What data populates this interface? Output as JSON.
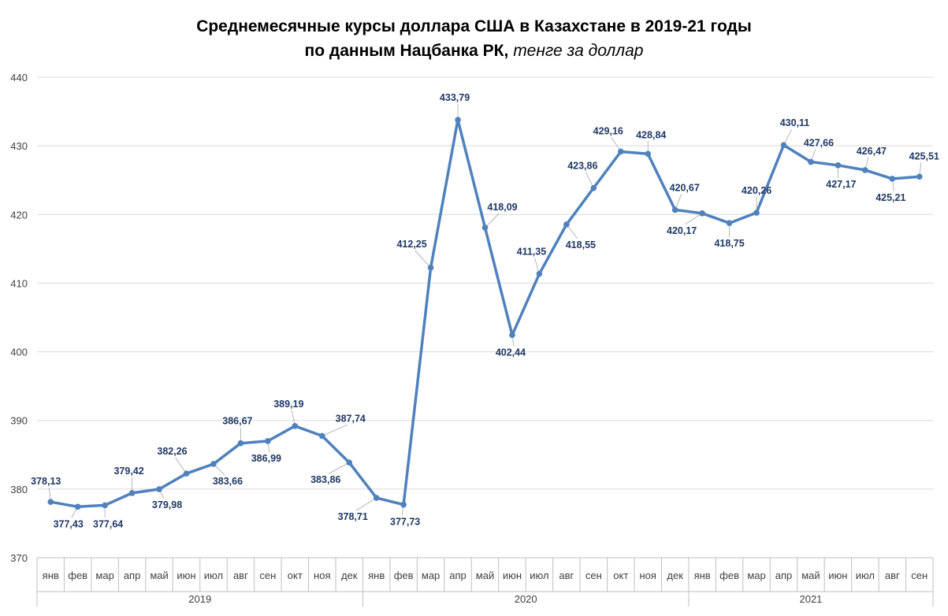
{
  "chart_data": {
    "type": "line",
    "title_line1": "Среднемесячные курсы доллара США в Казахстане в 2019-21 годы",
    "title_line2_bold": "по данным Нацбанка РК,",
    "title_line2_italic": "тенге за доллар",
    "xlabel": "",
    "ylabel": "",
    "ylim": [
      370,
      440
    ],
    "yticks": [
      "370",
      "380",
      "390",
      "400",
      "410",
      "420",
      "430",
      "440"
    ],
    "grid": true,
    "legend": "none",
    "line_color": "#4f81bd",
    "label_color": "#1f3864",
    "years": [
      {
        "label": "2019",
        "months": 12
      },
      {
        "label": "2020",
        "months": 12
      },
      {
        "label": "2021",
        "months": 9
      }
    ],
    "categories": [
      "янв",
      "фев",
      "мар",
      "апр",
      "май",
      "июн",
      "июл",
      "авг",
      "сен",
      "окт",
      "ноя",
      "дек",
      "янв",
      "фев",
      "мар",
      "апр",
      "май",
      "июн",
      "июл",
      "авг",
      "сен",
      "окт",
      "ноя",
      "дек",
      "янв",
      "фев",
      "мар",
      "апр",
      "май",
      "июн",
      "июл",
      "авг",
      "сен"
    ],
    "values": [
      378.13,
      377.43,
      377.64,
      379.42,
      379.98,
      382.26,
      383.66,
      386.67,
      386.99,
      389.19,
      387.74,
      383.86,
      378.71,
      377.73,
      412.25,
      433.79,
      418.09,
      402.44,
      411.35,
      418.55,
      423.86,
      429.16,
      428.84,
      420.67,
      420.17,
      418.75,
      420.26,
      430.11,
      427.66,
      427.17,
      426.47,
      425.21,
      425.51
    ],
    "data_labels": [
      "378,13",
      "377,43",
      "377,64",
      "379,42",
      "379,98",
      "382,26",
      "383,66",
      "386,67",
      "386,99",
      "389,19",
      "387,74",
      "383,86",
      "378,71",
      "377,73",
      "412,25",
      "433,79",
      "418,09",
      "402,44",
      "411,35",
      "418,55",
      "423,86",
      "429,16",
      "428,84",
      "420,67",
      "420,17",
      "418,75",
      "420,26",
      "430,11",
      "427,66",
      "427,17",
      "426,47",
      "425,21",
      "425,51"
    ]
  }
}
